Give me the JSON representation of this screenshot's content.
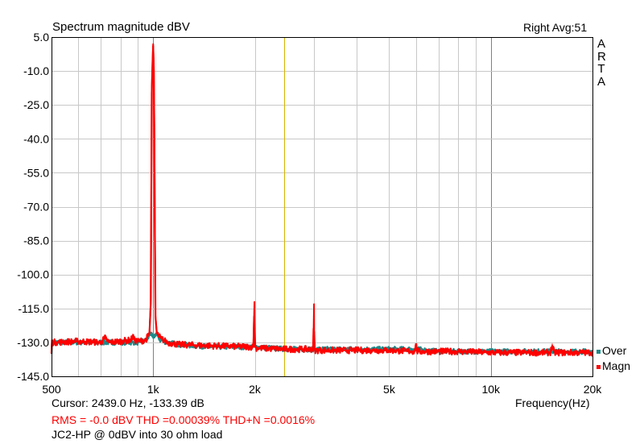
{
  "header": {
    "title": "Spectrum magnitude dBV",
    "channel_info": "Right  Avg:51",
    "brand_letters": [
      "A",
      "R",
      "T",
      "A"
    ]
  },
  "footer": {
    "cursor": "Cursor:  2439.0 Hz, -133.39 dB",
    "measurements": "RMS =   -0.0 dBV   THD =0.00039%   THD+N =0.0016%",
    "note": "JC2-HP @ 0dBV into 30 ohm load"
  },
  "legend": [
    {
      "label": "Over",
      "color": "#1f8a8a"
    },
    {
      "label": "Magn",
      "color": "#ff0000"
    }
  ],
  "chart_data": {
    "type": "line",
    "title": "Spectrum magnitude dBV",
    "xlabel": "Frequency(Hz)",
    "ylabel": "",
    "x_scale": "log",
    "xlim": [
      500,
      20000
    ],
    "ylim": [
      -145,
      5
    ],
    "grid": true,
    "legend_position": "right-bottom",
    "x_ticks": [
      {
        "value": 500,
        "label": "500"
      },
      {
        "value": 1000,
        "label": "1k"
      },
      {
        "value": 2000,
        "label": "2k"
      },
      {
        "value": 5000,
        "label": "5k"
      },
      {
        "value": 10000,
        "label": "10k"
      },
      {
        "value": 20000,
        "label": "20k"
      }
    ],
    "y_ticks": [
      5.0,
      -10.0,
      -25.0,
      -40.0,
      -55.0,
      -70.0,
      -85.0,
      -100.0,
      -115.0,
      -130.0,
      -145.0
    ],
    "y_tick_labels": [
      "5.0",
      "-10.0",
      "-25.0",
      "-40.0",
      "-55.0",
      "-70.0",
      "-85.0",
      "-100.0",
      "-115.0",
      "-130.0",
      "-145.0"
    ],
    "cursor_freq": 2439.0,
    "cursor_color": "#d4b400",
    "series": [
      {
        "name": "Over",
        "color": "#1f8a8a",
        "x": [
          500,
          600,
          700,
          800,
          900,
          960,
          980,
          1000,
          1020,
          1050,
          1100,
          1200,
          1500,
          2000,
          2500,
          3000,
          4000,
          5000,
          6000,
          7000,
          8000,
          10000,
          12000,
          15000,
          20000
        ],
        "y": [
          -130,
          -130,
          -130,
          -130,
          -130,
          -129,
          -126,
          -128,
          -126,
          -129,
          -130,
          -131,
          -132,
          -132,
          -133,
          -133,
          -133,
          -133,
          -133,
          -134,
          -134,
          -134,
          -134,
          -134,
          -134
        ]
      },
      {
        "name": "Magn",
        "color": "#ff0000",
        "x": [
          500,
          600,
          700,
          720,
          740,
          800,
          860,
          870,
          880,
          900,
          950,
          975,
          985,
          990,
          995,
          1000,
          1005,
          1010,
          1015,
          1025,
          1050,
          1100,
          1200,
          1500,
          1980,
          1995,
          2000,
          2005,
          2020,
          2500,
          2980,
          2995,
          3000,
          3005,
          3020,
          4000,
          5000,
          5950,
          6000,
          6050,
          8000,
          10000,
          12000,
          15000,
          15200,
          15400,
          20000
        ],
        "y": [
          -130,
          -129.5,
          -130,
          -128,
          -130,
          -129.5,
          -129,
          -127,
          -129,
          -129.5,
          -129,
          -126,
          -110,
          -20,
          -8,
          2,
          -10,
          -60,
          -118,
          -126,
          -128,
          -130,
          -131,
          -131.5,
          -132,
          -112,
          -132,
          -132,
          -132.5,
          -133,
          -133,
          -113,
          -133,
          -133,
          -133.5,
          -133.5,
          -133.5,
          -134,
          -130.5,
          -134,
          -134,
          -134.5,
          -134.5,
          -134.5,
          -131.5,
          -134.5,
          -134.5
        ]
      }
    ]
  }
}
